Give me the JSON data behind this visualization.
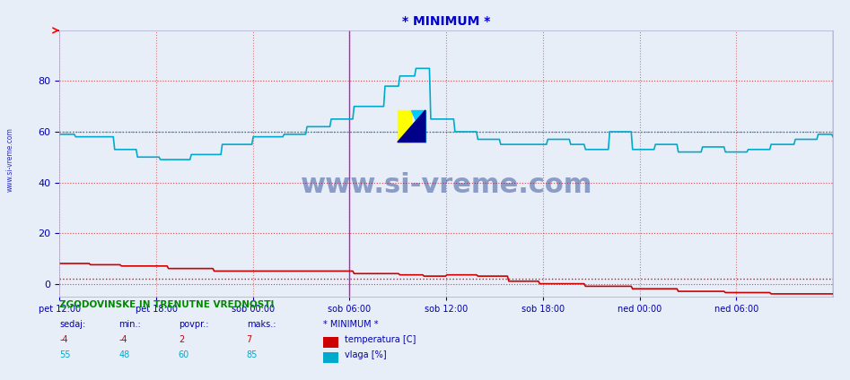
{
  "title": "* MINIMUM *",
  "title_color": "#0000cc",
  "bg_color": "#e8eef8",
  "plot_bg_color": "#e8eef8",
  "ylim": [
    -5,
    100
  ],
  "yticks": [
    0,
    20,
    40,
    60,
    80
  ],
  "xlabel_color": "#0000aa",
  "grid_color_h": "#cc0000",
  "grid_color_v": "#cc0000",
  "vline_color": "#cc00cc",
  "temp_color": "#cc0000",
  "humid_color": "#00aacc",
  "avg_temp_color": "#cc0000",
  "avg_humid_color": "#0088bb",
  "footer_title_color": "#008800",
  "footer_label_color": "#0000aa",
  "footer_value_temp_color": "#cc0000",
  "footer_value_humid_color": "#00aacc",
  "watermark_color": "#1a3a8a",
  "xtick_labels": [
    "pet 12:00",
    "pet 18:00",
    "sob 00:00",
    "sob 06:00",
    "sob 12:00",
    "sob 18:00",
    "ned 00:00",
    "ned 06:00"
  ],
  "xtick_hours": [
    0,
    6,
    12,
    18,
    24,
    30,
    36,
    42
  ],
  "total_hours": 48,
  "n_points": 576,
  "temp_avg": 2,
  "temp_min": -4,
  "temp_max": 7,
  "temp_now": -4,
  "humid_avg": 60,
  "humid_min": 48,
  "humid_max": 85,
  "humid_now": 55
}
